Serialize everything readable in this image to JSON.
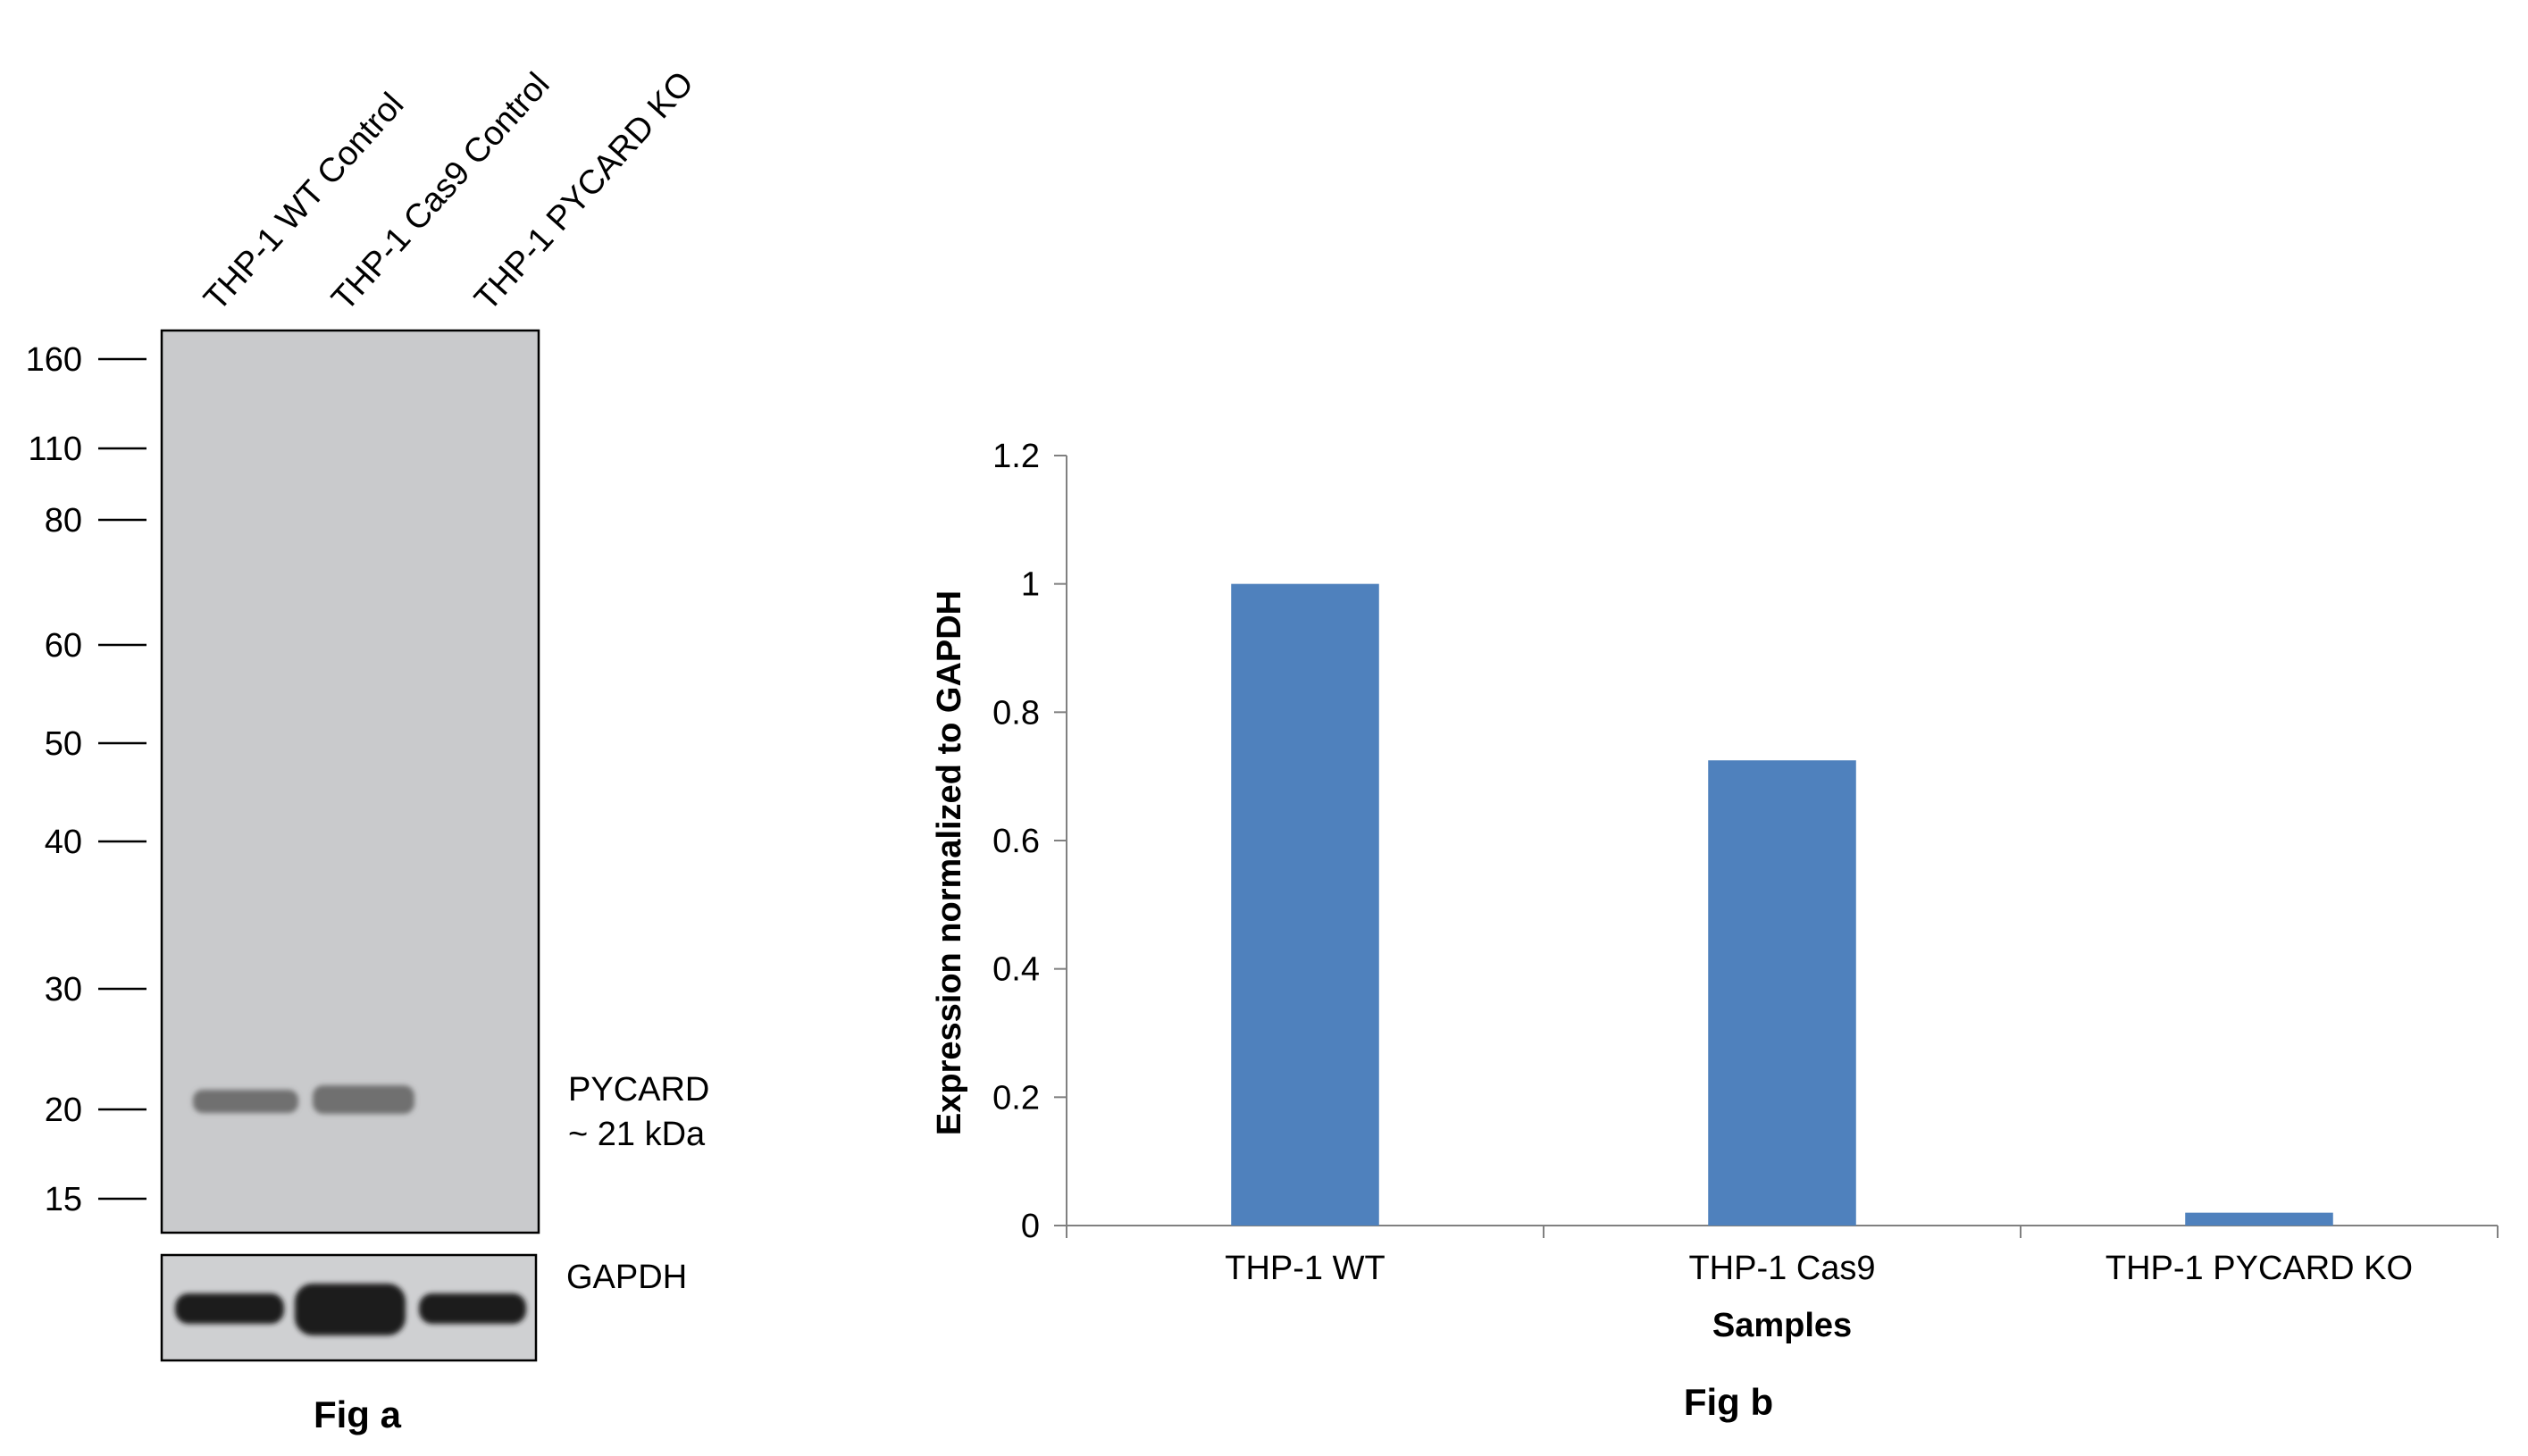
{
  "colors": {
    "bar": "#4F81BD",
    "axis": "#808080",
    "blot_background": "#c9cacc",
    "band": "#6f6f70",
    "gapdh_band": "#1a1a1a"
  },
  "western_blot": {
    "lanes": [
      "THP-1 WT Control",
      "THP-1 Cas9 Control",
      "THP-1 PYCARD KO"
    ],
    "markers": [
      "160",
      "110",
      "80",
      "60",
      "50",
      "40",
      "30",
      "20",
      "15"
    ],
    "band_label": "PYCARD",
    "band_size": "~ 21 kDa",
    "loading_control": "GAPDH",
    "caption": "Fig a"
  },
  "chart_caption": "Fig b",
  "chart_data": {
    "type": "bar",
    "categories": [
      "THP-1 WT",
      "THP-1 Cas9",
      "THP-1 PYCARD KO"
    ],
    "values": [
      1.0,
      0.725,
      0.02
    ],
    "yticks": [
      "0",
      "0.2",
      "0.4",
      "0.6",
      "0.8",
      "1",
      "1.2"
    ],
    "ylim": [
      0,
      1.2
    ],
    "xlabel": "Samples",
    "ylabel": "Expression  normalized to GAPDH",
    "grid": false
  }
}
